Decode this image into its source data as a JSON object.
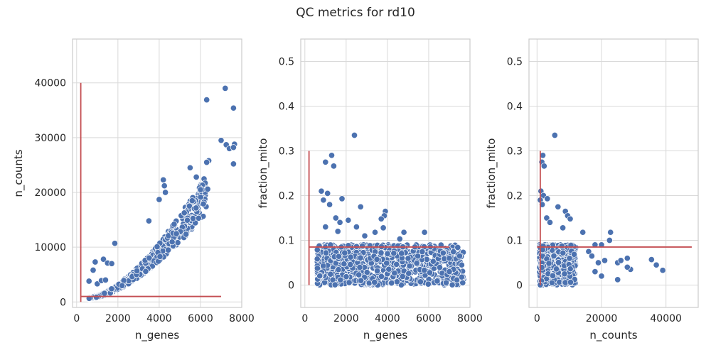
{
  "title": "QC metrics for rd10",
  "colors": {
    "points": "#4c72b0",
    "point_edge": "#ffffff",
    "threshold": "#c44e52",
    "grid": "#d9d9d9",
    "frame": "#cccccc"
  },
  "chart_data": [
    {
      "type": "scatter",
      "xlabel": "n_genes",
      "ylabel": "n_counts",
      "xlim": [
        -200,
        8000
      ],
      "ylim": [
        -1000,
        48000
      ],
      "xticks": [
        0,
        2000,
        4000,
        6000,
        8000
      ],
      "yticks": [
        0,
        10000,
        20000,
        30000,
        40000
      ],
      "grid": true,
      "trend": {
        "kind": "power",
        "exponent": 1.6,
        "x_min": 600,
        "x_max": 7700,
        "y_min": 700,
        "y_max": 28000,
        "noise": 0.18,
        "count": 900
      },
      "points": [
        [
          7200,
          39000
        ],
        [
          6300,
          36900
        ],
        [
          7600,
          35400
        ],
        [
          7000,
          29500
        ],
        [
          7250,
          28700
        ],
        [
          7650,
          28800
        ],
        [
          7400,
          28000
        ],
        [
          7600,
          28200
        ],
        [
          6400,
          25800
        ],
        [
          6300,
          25500
        ],
        [
          7600,
          25200
        ],
        [
          5500,
          24500
        ],
        [
          5800,
          22800
        ],
        [
          4200,
          22300
        ],
        [
          4250,
          21200
        ],
        [
          4300,
          20000
        ],
        [
          6000,
          20500
        ],
        [
          6350,
          20600
        ],
        [
          4000,
          18700
        ],
        [
          5600,
          18500
        ],
        [
          3500,
          14800
        ],
        [
          1850,
          10700
        ],
        [
          900,
          7300
        ],
        [
          1300,
          7800
        ],
        [
          1500,
          7100
        ],
        [
          1700,
          7000
        ],
        [
          800,
          5800
        ],
        [
          600,
          3800
        ],
        [
          1000,
          3300
        ],
        [
          1200,
          3900
        ],
        [
          1400,
          4000
        ]
      ],
      "thresholds": [
        {
          "orientation": "v",
          "x": 200,
          "from": 0,
          "to": 40000
        },
        {
          "orientation": "h",
          "y": 1000,
          "from": 200,
          "to": 7000
        }
      ]
    },
    {
      "type": "scatter",
      "xlabel": "n_genes",
      "ylabel": "fraction_mito",
      "xlim": [
        -200,
        8000
      ],
      "ylim": [
        -0.05,
        0.55
      ],
      "xticks": [
        0,
        2000,
        4000,
        6000,
        8000
      ],
      "yticks": [
        0.0,
        0.1,
        0.2,
        0.3,
        0.4,
        0.5
      ],
      "grid": true,
      "cloud": {
        "x_min": 600,
        "x_max": 7700,
        "y_min": 0.0,
        "y_max": 0.09,
        "count": 1100
      },
      "points": [
        [
          2400,
          0.335
        ],
        [
          1300,
          0.29
        ],
        [
          1000,
          0.275
        ],
        [
          1400,
          0.266
        ],
        [
          800,
          0.21
        ],
        [
          1100,
          0.205
        ],
        [
          1800,
          0.193
        ],
        [
          900,
          0.19
        ],
        [
          1200,
          0.18
        ],
        [
          2700,
          0.175
        ],
        [
          3900,
          0.165
        ],
        [
          3850,
          0.155
        ],
        [
          3700,
          0.148
        ],
        [
          1500,
          0.15
        ],
        [
          2100,
          0.145
        ],
        [
          1700,
          0.14
        ],
        [
          2500,
          0.13
        ],
        [
          3800,
          0.128
        ],
        [
          3400,
          0.118
        ],
        [
          4800,
          0.118
        ],
        [
          5800,
          0.118
        ],
        [
          1000,
          0.13
        ],
        [
          1600,
          0.12
        ],
        [
          2900,
          0.11
        ],
        [
          4600,
          0.103
        ],
        [
          7000,
          0.06
        ],
        [
          7500,
          0.065
        ],
        [
          7600,
          0.045
        ],
        [
          7200,
          0.035
        ],
        [
          7000,
          0.03
        ]
      ],
      "thresholds": [
        {
          "orientation": "v",
          "x": 200,
          "from": 0,
          "to": 0.3
        },
        {
          "orientation": "h",
          "y": 0.085,
          "from": 200,
          "to": 7000
        }
      ]
    },
    {
      "type": "scatter",
      "xlabel": "n_counts",
      "ylabel": "fraction_mito",
      "xlim": [
        -2500,
        50000
      ],
      "ylim": [
        -0.05,
        0.55
      ],
      "xticks": [
        0,
        20000,
        40000
      ],
      "yticks": [
        0.0,
        0.1,
        0.2,
        0.3,
        0.4,
        0.5
      ],
      "grid": true,
      "cloud": {
        "x_min": 800,
        "x_max": 12000,
        "y_min": 0.0,
        "y_max": 0.09,
        "count": 900
      },
      "points": [
        [
          5500,
          0.335
        ],
        [
          1800,
          0.29
        ],
        [
          1500,
          0.275
        ],
        [
          2200,
          0.266
        ],
        [
          1200,
          0.21
        ],
        [
          2000,
          0.2
        ],
        [
          3200,
          0.193
        ],
        [
          1000,
          0.19
        ],
        [
          1600,
          0.18
        ],
        [
          6500,
          0.175
        ],
        [
          8800,
          0.165
        ],
        [
          9500,
          0.155
        ],
        [
          10300,
          0.148
        ],
        [
          3000,
          0.15
        ],
        [
          4000,
          0.14
        ],
        [
          8000,
          0.128
        ],
        [
          14200,
          0.118
        ],
        [
          22800,
          0.118
        ],
        [
          22500,
          0.1
        ],
        [
          18000,
          0.09
        ],
        [
          20000,
          0.09
        ],
        [
          16000,
          0.075
        ],
        [
          17000,
          0.065
        ],
        [
          19000,
          0.05
        ],
        [
          21000,
          0.055
        ],
        [
          25000,
          0.05
        ],
        [
          26000,
          0.055
        ],
        [
          28000,
          0.06
        ],
        [
          29000,
          0.035
        ],
        [
          28000,
          0.04
        ],
        [
          35500,
          0.057
        ],
        [
          37000,
          0.045
        ],
        [
          39000,
          0.033
        ],
        [
          25000,
          0.012
        ],
        [
          20000,
          0.02
        ],
        [
          18000,
          0.03
        ]
      ],
      "thresholds": [
        {
          "orientation": "v",
          "x": 1000,
          "from": 0,
          "to": 0.3
        },
        {
          "orientation": "h",
          "y": 0.085,
          "from": 0,
          "to": 48000
        }
      ]
    }
  ]
}
